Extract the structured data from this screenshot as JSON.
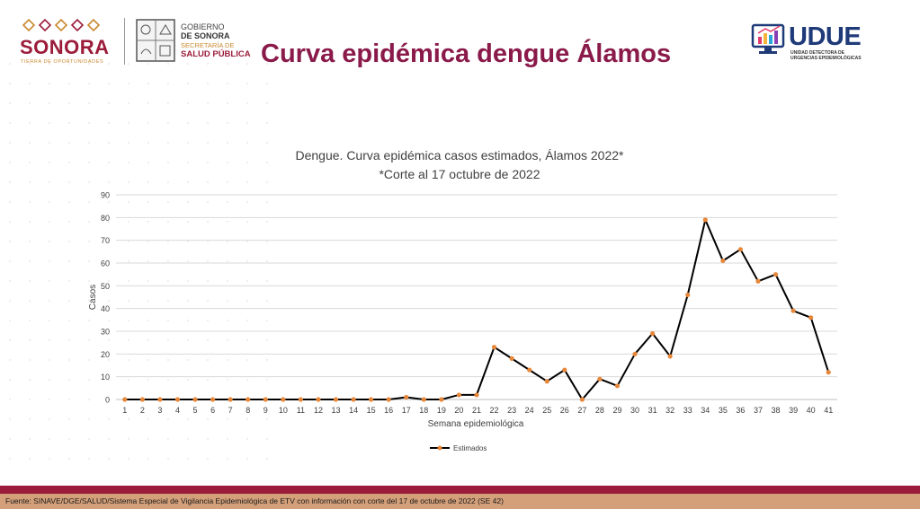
{
  "header": {
    "sonora_word": "SONORA",
    "sonora_tagline": "TIERRA DE OPORTUNIDADES",
    "gov_line1": "GOBIERNO",
    "gov_line2": "DE SONORA",
    "gov_line3": "SECRETARÍA DE",
    "gov_line4": "SALUD PÚBLICA",
    "title": "Curva epidémica dengue Álamos",
    "udue_brand": "UDUE",
    "udue_line1": "UNIDAD DETECTORA DE",
    "udue_line2": "URGENCIAS EPIDEMIOLÓGICAS"
  },
  "colors": {
    "title": "#8a1a4a",
    "line": "#000000",
    "marker": "#e7873a",
    "grid": "#d9d9d9"
  },
  "chart_data": {
    "type": "line",
    "title": "Dengue. Curva epidémica casos estimados, Álamos 2022*",
    "subtitle": "*Corte al 17 octubre de 2022",
    "xlabel": "Semana epidemiológica",
    "ylabel": "Casos",
    "ylim": [
      0,
      90
    ],
    "yticks": [
      0,
      10,
      20,
      30,
      40,
      50,
      60,
      70,
      80,
      90
    ],
    "grid": true,
    "legend_position": "bottom",
    "categories": [
      "1",
      "2",
      "3",
      "4",
      "5",
      "6",
      "7",
      "8",
      "9",
      "10",
      "11",
      "12",
      "13",
      "14",
      "15",
      "16",
      "17",
      "18",
      "19",
      "20",
      "21",
      "22",
      "23",
      "24",
      "25",
      "26",
      "27",
      "28",
      "29",
      "30",
      "31",
      "32",
      "33",
      "34",
      "35",
      "36",
      "37",
      "38",
      "39",
      "40",
      "41"
    ],
    "series": [
      {
        "name": "Estimados",
        "values": [
          0,
          0,
          0,
          0,
          0,
          0,
          0,
          0,
          0,
          0,
          0,
          0,
          0,
          0,
          0,
          0,
          1,
          0,
          0,
          2,
          2,
          23,
          18,
          13,
          8,
          13,
          0,
          9,
          6,
          20,
          29,
          19,
          46,
          79,
          61,
          66,
          52,
          55,
          39,
          36,
          12
        ]
      }
    ]
  },
  "footer": {
    "source": "Fuente: SINAVE/DGE/SALUD/Sistema Especial de Vigilancia Epidemiológica de ETV con información con corte del 17 de octubre de 2022 (SE 42)"
  }
}
